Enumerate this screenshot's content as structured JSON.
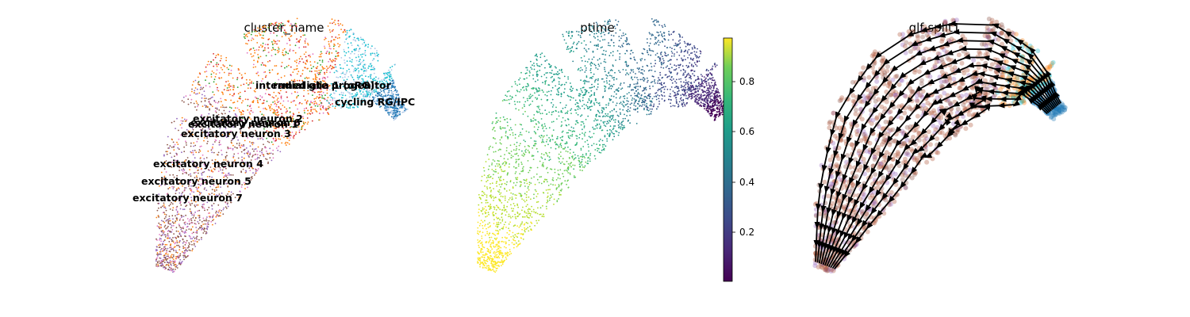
{
  "chart_data": [
    {
      "type": "scatter",
      "title": "cluster_name",
      "xlabel": "",
      "ylabel": "",
      "grid": false,
      "legend": "on data",
      "categories": [
        "intermediate progenitor",
        "radial glia 1 (oRG)",
        "cycling RG/IPC",
        "excitatory neuron 2",
        "excitatory neuron 1",
        "excitatory neuron 6",
        "excitatory neuron 3",
        "excitatory neuron 4",
        "excitatory neuron 5",
        "excitatory neuron 7"
      ],
      "category_colors": [
        "#17becf",
        "#1f77b4",
        "#aec7e8",
        "#ff7f0e",
        "#d62728",
        "#e377c2",
        "#2ca02c",
        "#8c564b",
        "#9467bd",
        "#bcbd22"
      ]
    },
    {
      "type": "scatter",
      "title": "ptime",
      "xlabel": "",
      "ylabel": "",
      "grid": false,
      "colorbar": {
        "ticks": [
          0.2,
          0.4,
          0.6,
          0.8
        ],
        "range": [
          0.0,
          0.97
        ],
        "colormap": "viridis"
      }
    },
    {
      "type": "scatter",
      "title": "glf split1",
      "xlabel": "",
      "ylabel": "",
      "grid": false,
      "overlay": "velocity streamlines"
    }
  ]
}
